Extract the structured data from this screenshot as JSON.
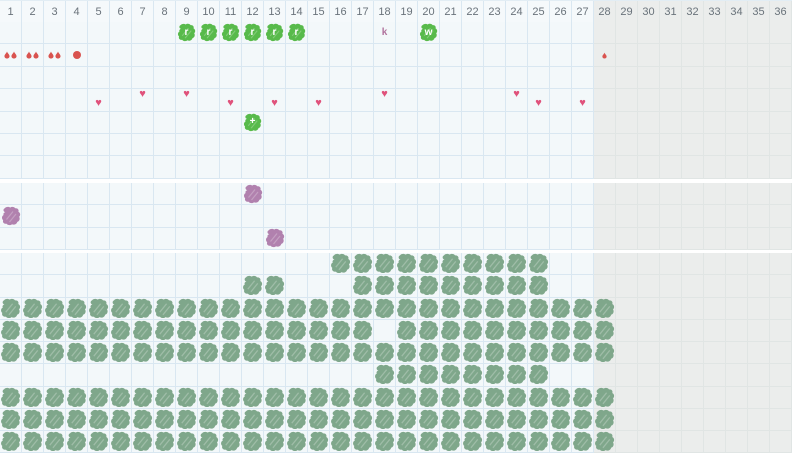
{
  "colors": {
    "active_cell_bg": "#f3f8fa",
    "grid_line": "#d9e7f1",
    "inactive_cell_bg": "#ebedec",
    "inactive_grid_line": "#e0e5e4",
    "header_text": "#6a737b",
    "green_stamp": "#58ba4b",
    "sage_stamp": "#7fa78b",
    "purple_stamp": "#b181ae",
    "heart": "#e0527b",
    "drop_red": "#d9534f",
    "plain_letter": "#b0739d",
    "section_gap": "#ffffff"
  },
  "grid": {
    "columns": 36,
    "inactive_from_column": 28,
    "header_numbers": [
      1,
      2,
      3,
      4,
      5,
      6,
      7,
      8,
      9,
      10,
      11,
      12,
      13,
      14,
      15,
      16,
      17,
      18,
      19,
      20,
      21,
      22,
      23,
      24,
      25,
      26,
      27,
      28,
      29,
      30,
      31,
      32,
      33,
      34,
      35,
      36
    ],
    "sections": [
      {
        "name": "symbols",
        "rows": [
          {
            "cells": [
              {
                "col": 9,
                "icon": "green-blob",
                "label": "r"
              },
              {
                "col": 10,
                "icon": "green-blob",
                "label": "r"
              },
              {
                "col": 11,
                "icon": "green-blob",
                "label": "r"
              },
              {
                "col": 12,
                "icon": "green-blob",
                "label": "r"
              },
              {
                "col": 13,
                "icon": "green-blob",
                "label": "r"
              },
              {
                "col": 14,
                "icon": "green-blob",
                "label": "r"
              },
              {
                "col": 18,
                "icon": "plain-letter",
                "label": "k"
              },
              {
                "col": 20,
                "icon": "green-blob",
                "label": "w"
              }
            ]
          },
          {
            "cells": [
              {
                "col": 1,
                "icon": "drops-double"
              },
              {
                "col": 2,
                "icon": "drops-double"
              },
              {
                "col": 3,
                "icon": "drops-double"
              },
              {
                "col": 4,
                "icon": "dot"
              },
              {
                "col": 28,
                "icon": "drop-single"
              }
            ]
          },
          {
            "cells": []
          },
          {
            "cells": [
              {
                "col": 5,
                "icon": "heart",
                "pos": "low"
              },
              {
                "col": 7,
                "icon": "heart",
                "pos": "high"
              },
              {
                "col": 9,
                "icon": "heart",
                "pos": "high"
              },
              {
                "col": 11,
                "icon": "heart",
                "pos": "low"
              },
              {
                "col": 13,
                "icon": "heart",
                "pos": "low"
              },
              {
                "col": 15,
                "icon": "heart",
                "pos": "low"
              },
              {
                "col": 18,
                "icon": "heart",
                "pos": "high"
              },
              {
                "col": 24,
                "icon": "heart",
                "pos": "high"
              },
              {
                "col": 25,
                "icon": "heart",
                "pos": "low"
              },
              {
                "col": 27,
                "icon": "heart",
                "pos": "low"
              }
            ]
          },
          {
            "cells": [
              {
                "col": 12,
                "icon": "green-blob",
                "label": "+"
              }
            ]
          },
          {
            "cells": []
          },
          {
            "cells": []
          }
        ]
      },
      {
        "name": "middle",
        "rows": [
          {
            "cells": [
              {
                "col": 12,
                "icon": "purple-blob"
              }
            ]
          },
          {
            "cells": [
              {
                "col": 1,
                "icon": "purple-blob"
              }
            ]
          },
          {
            "cells": [
              {
                "col": 13,
                "icon": "purple-blob"
              }
            ]
          }
        ]
      },
      {
        "name": "bottom",
        "rows": [
          {
            "stamp_cols": "16-25"
          },
          {
            "stamp_cols": "12-13,17-25"
          },
          {
            "stamp_cols": "1-28"
          },
          {
            "stamp_cols": "1-17,19-28"
          },
          {
            "stamp_cols": "1-28"
          },
          {
            "stamp_cols": "18-25"
          },
          {
            "stamp_cols": "1-28"
          },
          {
            "stamp_cols": "1-28"
          },
          {
            "stamp_cols": "1-28"
          }
        ]
      }
    ]
  }
}
